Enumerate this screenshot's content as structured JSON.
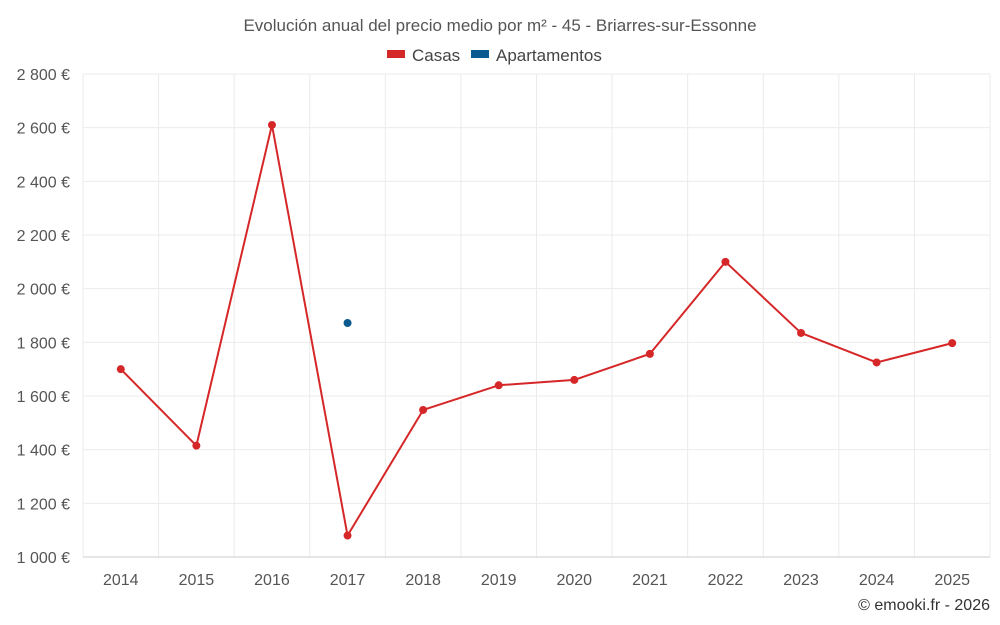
{
  "chart_data": {
    "type": "line",
    "title": "Evolución anual del precio medio por m² - 45 - Briarres-sur-Essonne",
    "categories": [
      "2014",
      "2015",
      "2016",
      "2017",
      "2018",
      "2019",
      "2020",
      "2021",
      "2022",
      "2023",
      "2024",
      "2025"
    ],
    "series": [
      {
        "name": "Casas",
        "color": "#d62728",
        "values": [
          1700,
          1415,
          2610,
          1080,
          1548,
          1640,
          1660,
          1757,
          2100,
          1835,
          1725,
          1797
        ]
      },
      {
        "name": "Apartamentos",
        "color": "#0a5a8f",
        "values": [
          null,
          null,
          null,
          1872,
          null,
          null,
          null,
          null,
          null,
          null,
          null,
          null
        ]
      }
    ],
    "ylim": [
      1000,
      2800
    ],
    "yticks": [
      1000,
      1200,
      1400,
      1600,
      1800,
      2000,
      2200,
      2400,
      2600,
      2800
    ],
    "ytick_labels": [
      "1 000 €",
      "1 200 €",
      "1 400 €",
      "1 600 €",
      "1 800 €",
      "2 000 €",
      "2 200 €",
      "2 400 €",
      "2 600 €",
      "2 800 €"
    ],
    "xlabel": "",
    "ylabel": "",
    "grid": true,
    "legend_position": "top-center"
  },
  "credit": "© emooki.fr - 2026"
}
